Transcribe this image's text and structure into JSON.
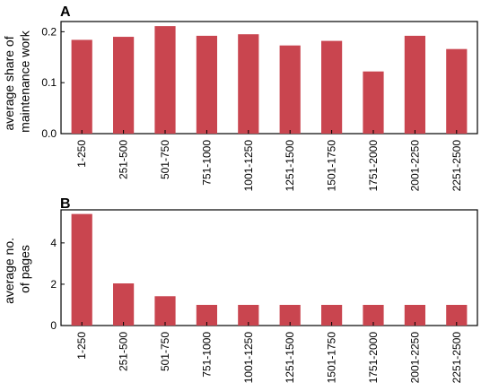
{
  "chart_data": [
    {
      "type": "bar",
      "panel_label": "A",
      "ylabel": "average share of\nmaintenance work",
      "categories": [
        "1-250",
        "251-500",
        "501-750",
        "751-1000",
        "1001-1250",
        "1251-1500",
        "1501-1750",
        "1751-2000",
        "2001-2250",
        "2251-2500"
      ],
      "values": [
        0.184,
        0.19,
        0.211,
        0.192,
        0.195,
        0.173,
        0.182,
        0.122,
        0.192,
        0.166
      ],
      "ylim": [
        0,
        0.22
      ],
      "yticks": [
        0.0,
        0.1,
        0.2
      ],
      "ytick_labels": [
        "0.0",
        "0.1",
        "0.2"
      ],
      "bar_color": "#c9454f",
      "grid": false
    },
    {
      "type": "bar",
      "panel_label": "B",
      "ylabel": "average no.\nof pages",
      "categories": [
        "1-250",
        "251-500",
        "501-750",
        "751-1000",
        "1001-1250",
        "1251-1500",
        "1501-1750",
        "1751-2000",
        "2001-2250",
        "2251-2500"
      ],
      "values": [
        5.4,
        2.04,
        1.42,
        1.0,
        1.0,
        1.0,
        1.0,
        1.0,
        1.0,
        1.0
      ],
      "ylim": [
        0,
        5.6
      ],
      "yticks": [
        0,
        2,
        4
      ],
      "ytick_labels": [
        "0",
        "2",
        "4"
      ],
      "bar_color": "#c9454f",
      "grid": false
    }
  ]
}
